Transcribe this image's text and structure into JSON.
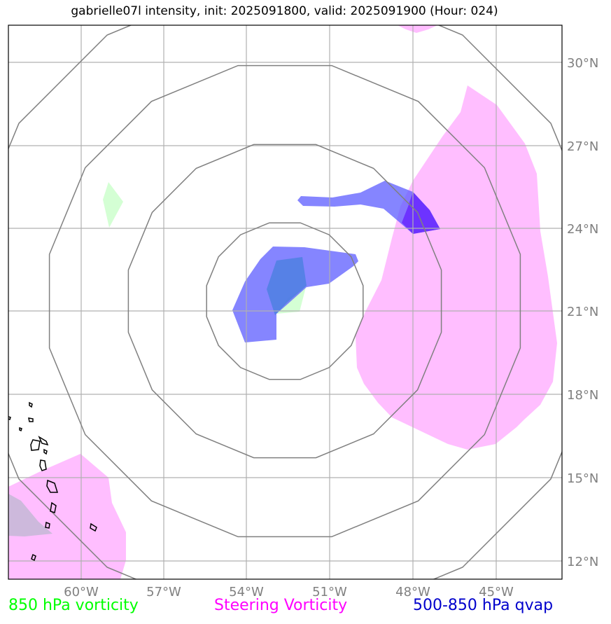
{
  "title": "gabrielle07l intensity, init: 2025091800, valid: 2025091900 (Hour: 024)",
  "lon_ticks": [
    "60°W",
    "57°W",
    "54°W",
    "51°W",
    "48°W",
    "45°W"
  ],
  "lat_ticks": [
    "30°N",
    "27°N",
    "24°N",
    "21°N",
    "18°N",
    "15°N",
    "12°N"
  ],
  "legend": [
    {
      "label": "850 hPa vorticity",
      "color": "#00ff00"
    },
    {
      "label": "Steering Vorticity",
      "color": "#ff00ff"
    },
    {
      "label": "500-850 hPa qvap",
      "color": "#0000cc"
    }
  ],
  "colors": {
    "vorticity_850": "#ccffcc",
    "steering_vorticity": "#ffb3ff",
    "qvap": "#5c5cff",
    "rings": "#808080",
    "gridlines": "#b0b0b0",
    "coastline": "#000000"
  }
}
